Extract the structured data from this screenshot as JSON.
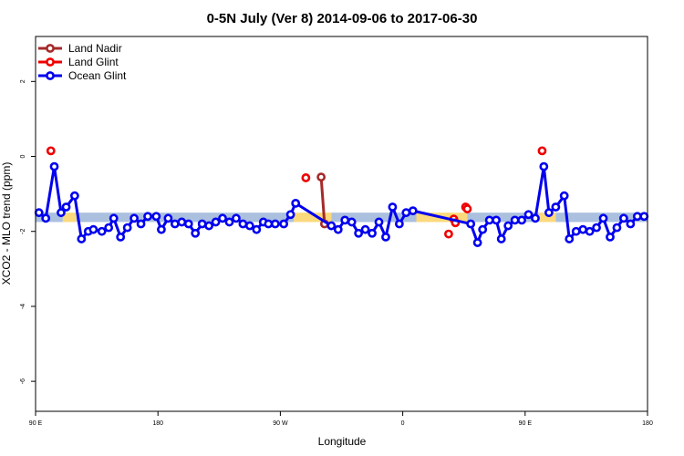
{
  "chart_data": {
    "type": "line",
    "title": "0-5N July (Ver 8)   2014-09-06 to 2017-06-30",
    "xlabel": "Longitude",
    "ylabel": "XCO2 - MLO trend (ppm)",
    "xlim": [
      0,
      360
    ],
    "ylim": [
      -6.8,
      3.2
    ],
    "x_ticks": [
      {
        "x": 0,
        "label": "90 E"
      },
      {
        "x": 72,
        "label": "180"
      },
      {
        "x": 144,
        "label": "90 W"
      },
      {
        "x": 216,
        "label": "0"
      },
      {
        "x": 288,
        "label": "90 E"
      },
      {
        "x": 360,
        "label": "180"
      }
    ],
    "y_ticks": [
      2,
      0,
      -2,
      -4,
      -6
    ],
    "legend_position": "top-left",
    "band": {
      "y_low": -1.75,
      "y_high": -1.5,
      "segments": [
        {
          "x_start": 0,
          "x_end": 16,
          "color": "#aac0de"
        },
        {
          "x_start": 16,
          "x_end": 24,
          "color": "#fbd97c"
        },
        {
          "x_start": 24,
          "x_end": 152,
          "color": "#aac0de"
        },
        {
          "x_start": 152,
          "x_end": 174,
          "color": "#fbd97c"
        },
        {
          "x_start": 174,
          "x_end": 224,
          "color": "#aac0de"
        },
        {
          "x_start": 224,
          "x_end": 254,
          "color": "#fbd97c"
        },
        {
          "x_start": 254,
          "x_end": 296,
          "color": "#aac0de"
        },
        {
          "x_start": 296,
          "x_end": 306,
          "color": "#fbd97c"
        },
        {
          "x_start": 306,
          "x_end": 360,
          "color": "#aac0de"
        }
      ]
    },
    "series": [
      {
        "name": "Land Nadir",
        "color": "#a52a2a",
        "connected": true,
        "points": [
          [
            168,
            -0.55
          ],
          [
            170,
            -1.8
          ]
        ]
      },
      {
        "name": "Land Glint",
        "color": "#ee0000",
        "connected": false,
        "points": [
          [
            9,
            0.15
          ],
          [
            159,
            -0.57
          ],
          [
            243,
            -2.07
          ],
          [
            246,
            -1.67
          ],
          [
            247,
            -1.77
          ],
          [
            253,
            -1.35
          ],
          [
            254,
            -1.4
          ],
          [
            298,
            0.15
          ]
        ]
      },
      {
        "name": "Ocean Glint",
        "color": "#0000ee",
        "connected": true,
        "breaks_after": [
          55,
          84
        ],
        "points": [
          [
            2,
            -1.5
          ],
          [
            6,
            -1.65
          ],
          [
            11,
            -0.27
          ],
          [
            15,
            -1.5
          ],
          [
            18,
            -1.35
          ],
          [
            23,
            -1.05
          ],
          [
            27,
            -2.2
          ],
          [
            31,
            -2.0
          ],
          [
            34,
            -1.95
          ],
          [
            39,
            -2.0
          ],
          [
            43,
            -1.9
          ],
          [
            46,
            -1.65
          ],
          [
            50,
            -2.15
          ],
          [
            54,
            -1.9
          ],
          [
            58,
            -1.65
          ],
          [
            62,
            -1.8
          ],
          [
            66,
            -1.6
          ],
          [
            71,
            -1.6
          ],
          [
            74,
            -1.95
          ],
          [
            78,
            -1.65
          ],
          [
            82,
            -1.8
          ],
          [
            86,
            -1.75
          ],
          [
            90,
            -1.8
          ],
          [
            94,
            -2.05
          ],
          [
            98,
            -1.8
          ],
          [
            102,
            -1.85
          ],
          [
            106,
            -1.75
          ],
          [
            110,
            -1.65
          ],
          [
            114,
            -1.75
          ],
          [
            118,
            -1.65
          ],
          [
            122,
            -1.8
          ],
          [
            126,
            -1.85
          ],
          [
            130,
            -1.95
          ],
          [
            134,
            -1.75
          ],
          [
            137,
            -1.8
          ],
          [
            141,
            -1.8
          ],
          [
            146,
            -1.8
          ],
          [
            150,
            -1.55
          ],
          [
            153,
            -1.25
          ],
          [
            174,
            -1.85
          ],
          [
            178,
            -1.95
          ],
          [
            182,
            -1.7
          ],
          [
            186,
            -1.75
          ],
          [
            190,
            -2.05
          ],
          [
            194,
            -1.95
          ],
          [
            198,
            -2.05
          ],
          [
            202,
            -1.75
          ],
          [
            206,
            -2.15
          ],
          [
            210,
            -1.35
          ],
          [
            214,
            -1.8
          ],
          [
            218,
            -1.5
          ],
          [
            222,
            -1.45
          ],
          [
            256,
            -1.8
          ],
          [
            260,
            -2.3
          ],
          [
            263,
            -1.95
          ],
          [
            267,
            -1.7
          ],
          [
            271,
            -1.7
          ],
          [
            274,
            -2.2
          ],
          [
            278,
            -1.85
          ],
          [
            282,
            -1.7
          ],
          [
            286,
            -1.7
          ],
          [
            290,
            -1.55
          ],
          [
            294,
            -1.65
          ],
          [
            299,
            -0.27
          ],
          [
            302,
            -1.5
          ],
          [
            306,
            -1.35
          ],
          [
            311,
            -1.05
          ],
          [
            314,
            -2.2
          ],
          [
            318,
            -2.0
          ],
          [
            322,
            -1.95
          ],
          [
            326,
            -2.0
          ],
          [
            330,
            -1.9
          ],
          [
            334,
            -1.65
          ],
          [
            338,
            -2.15
          ],
          [
            342,
            -1.9
          ],
          [
            346,
            -1.65
          ],
          [
            350,
            -1.8
          ],
          [
            354,
            -1.6
          ],
          [
            358,
            -1.6
          ]
        ]
      }
    ]
  }
}
